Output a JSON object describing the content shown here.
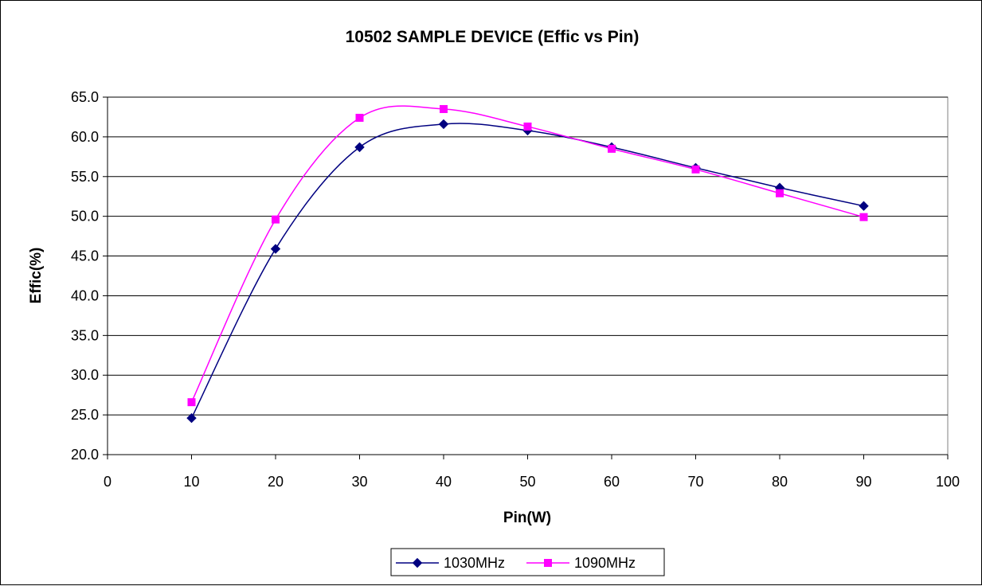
{
  "chart_data": {
    "type": "line",
    "title": "10502 SAMPLE DEVICE (Effic vs Pin)",
    "xlabel": "Pin(W)",
    "ylabel": "Effic(%)",
    "xlim": [
      0,
      100
    ],
    "ylim": [
      20,
      65
    ],
    "x_ticks": [
      "0",
      "10",
      "20",
      "30",
      "40",
      "50",
      "60",
      "70",
      "80",
      "90",
      "100"
    ],
    "y_ticks": [
      "20.0",
      "25.0",
      "30.0",
      "35.0",
      "40.0",
      "45.0",
      "50.0",
      "55.0",
      "60.0",
      "65.0"
    ],
    "grid": "horizontal",
    "legend_position": "bottom",
    "x": [
      10,
      20,
      30,
      40,
      50,
      60,
      70,
      80,
      90
    ],
    "series": [
      {
        "name": "1030MHz",
        "color": "#000080",
        "marker": "diamond",
        "values": [
          24.6,
          45.9,
          58.7,
          61.6,
          60.8,
          58.7,
          56.1,
          53.6,
          51.3
        ]
      },
      {
        "name": "1090MHz",
        "color": "#FF00FF",
        "marker": "square",
        "values": [
          26.6,
          49.6,
          62.4,
          63.5,
          61.3,
          58.5,
          55.9,
          52.9,
          49.9
        ]
      }
    ]
  }
}
